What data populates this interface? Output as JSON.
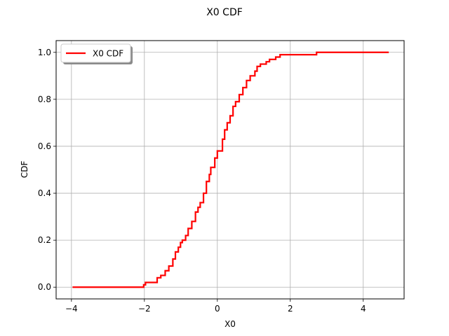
{
  "chart_data": {
    "type": "line",
    "title": "X0 CDF",
    "xlabel": "X0",
    "ylabel": "CDF",
    "xlim": [
      -4.42,
      5.12
    ],
    "ylim": [
      -0.05,
      1.05
    ],
    "x_ticks": [
      -4,
      -2,
      0,
      2,
      4
    ],
    "x_tick_labels": [
      "−4",
      "−2",
      "0",
      "2",
      "4"
    ],
    "y_ticks": [
      0.0,
      0.2,
      0.4,
      0.6,
      0.8,
      1.0
    ],
    "y_tick_labels": [
      "0.0",
      "0.2",
      "0.4",
      "0.6",
      "0.8",
      "1.0"
    ],
    "grid": true,
    "legend_position": "top-left",
    "step": true,
    "series": [
      {
        "name": "X0 CDF",
        "color": "#ff0000",
        "x": [
          -3.97,
          -2.02,
          -1.97,
          -1.94,
          -1.65,
          -1.55,
          -1.43,
          -1.33,
          -1.22,
          -1.15,
          -1.07,
          -1.01,
          -0.96,
          -0.87,
          -0.8,
          -0.7,
          -0.6,
          -0.53,
          -0.47,
          -0.38,
          -0.3,
          -0.22,
          -0.18,
          -0.1,
          -0.07,
          0.0,
          0.14,
          0.2,
          0.27,
          0.35,
          0.43,
          0.5,
          0.6,
          0.7,
          0.8,
          0.9,
          1.03,
          1.09,
          1.18,
          1.34,
          1.43,
          1.6,
          1.72,
          1.95,
          2.12,
          2.72,
          4.7
        ],
        "y": [
          0.0,
          0.01,
          0.02,
          0.02,
          0.04,
          0.05,
          0.07,
          0.09,
          0.12,
          0.15,
          0.17,
          0.19,
          0.2,
          0.22,
          0.25,
          0.28,
          0.32,
          0.34,
          0.36,
          0.4,
          0.45,
          0.48,
          0.51,
          0.51,
          0.55,
          0.58,
          0.63,
          0.67,
          0.7,
          0.73,
          0.77,
          0.79,
          0.82,
          0.85,
          0.88,
          0.9,
          0.92,
          0.94,
          0.95,
          0.96,
          0.97,
          0.98,
          0.99,
          0.99,
          0.99,
          1.0,
          1.0
        ]
      }
    ]
  }
}
